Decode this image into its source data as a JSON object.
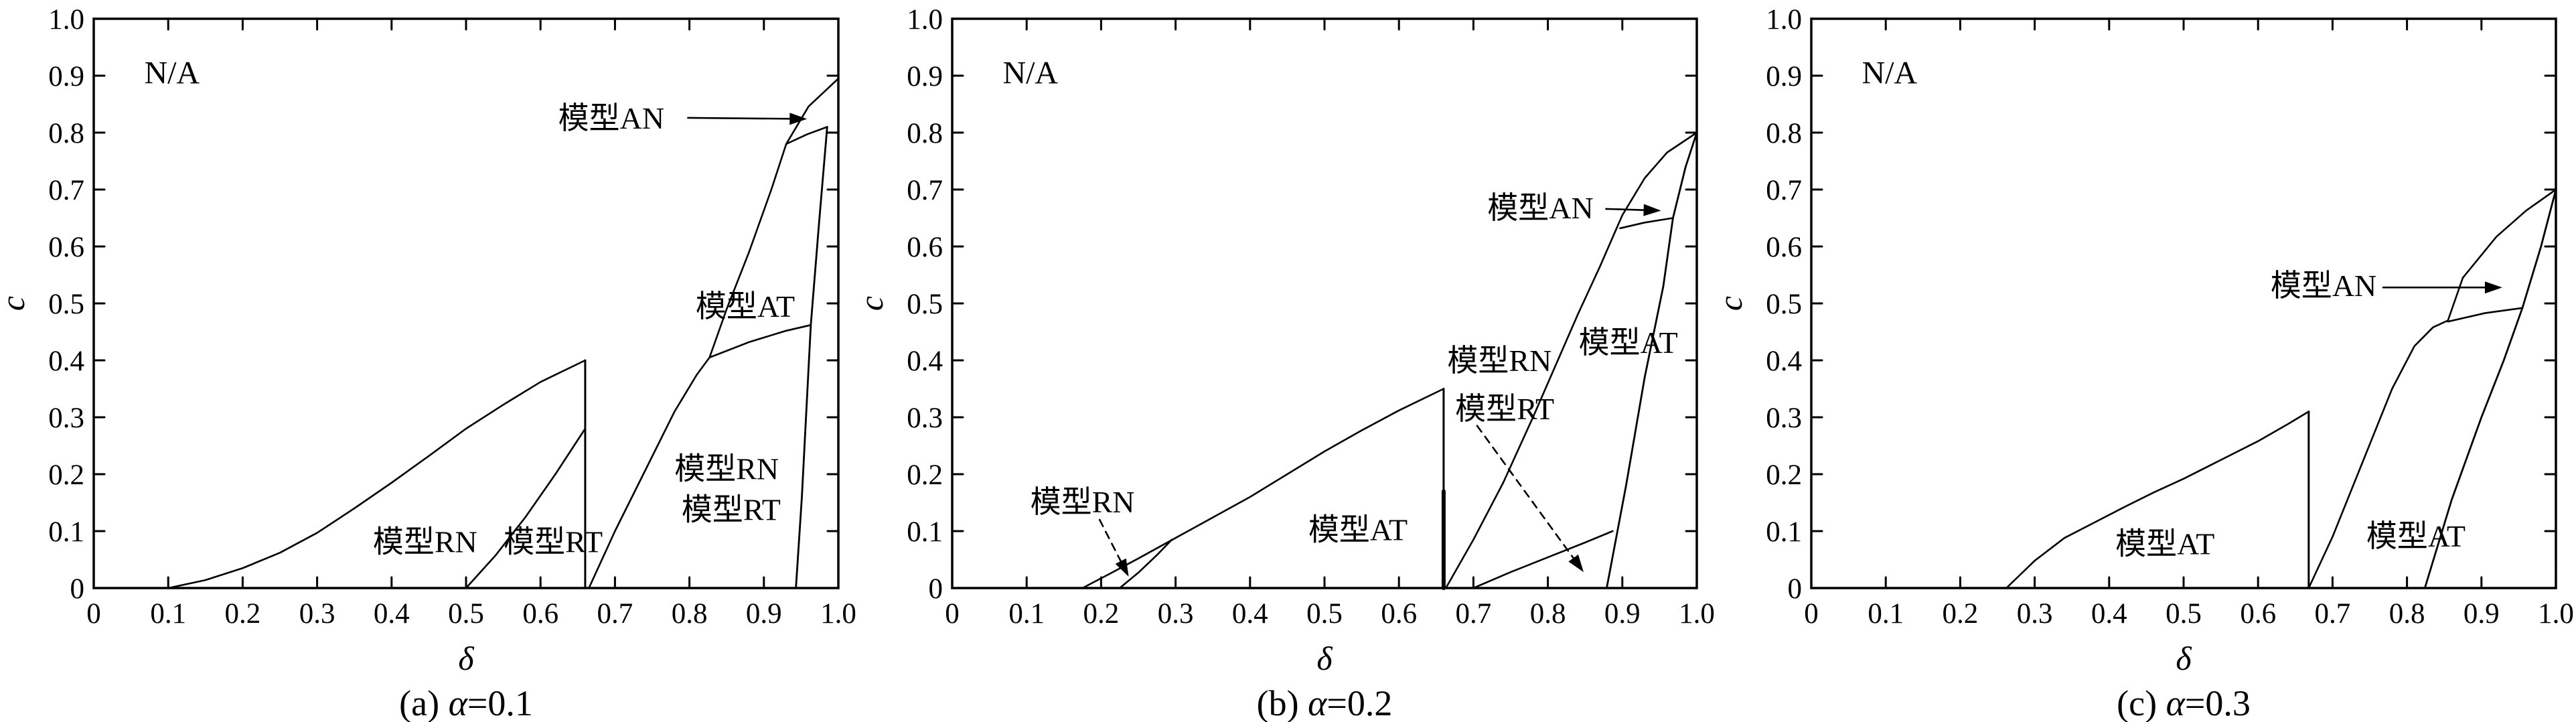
{
  "page": {
    "background": "#ffffff",
    "line_color": "#000000"
  },
  "chart_data": {
    "type": "line",
    "title": "",
    "xlabel": "δ",
    "ylabel": "c",
    "xlim": [
      0,
      1
    ],
    "ylim": [
      0,
      1
    ],
    "grid": false,
    "legend": "none",
    "tick_values": [
      0,
      0.1,
      0.2,
      0.3,
      0.4,
      0.5,
      0.6,
      0.7,
      0.8,
      0.9,
      1.0
    ],
    "tick_labels": [
      "0",
      "0.1",
      "0.2",
      "0.3",
      "0.4",
      "0.5",
      "0.6",
      "0.7",
      "0.8",
      "0.9",
      "1.0"
    ],
    "panels": [
      {
        "id": "a",
        "caption": {
          "prefix": "(a) ",
          "alpha": "α",
          "suffix": "=0.1"
        },
        "boundaries": [
          {
            "name": "na-boundary-left",
            "width": 2.6,
            "points": [
              [
                0.1,
                0
              ],
              [
                0.15,
                0.014
              ],
              [
                0.2,
                0.035
              ],
              [
                0.25,
                0.062
              ],
              [
                0.3,
                0.097
              ],
              [
                0.35,
                0.14
              ],
              [
                0.4,
                0.185
              ],
              [
                0.45,
                0.232
              ],
              [
                0.5,
                0.28
              ],
              [
                0.55,
                0.322
              ],
              [
                0.6,
                0.362
              ],
              [
                0.66,
                0.4
              ]
            ]
          },
          {
            "name": "vertical-drop",
            "width": 3,
            "points": [
              [
                0.66,
                0.4
              ],
              [
                0.66,
                0
              ]
            ]
          },
          {
            "name": "rn-rt-divider-left",
            "width": 2.6,
            "points": [
              [
                0.5,
                0
              ],
              [
                0.54,
                0.058
              ],
              [
                0.58,
                0.125
              ],
              [
                0.62,
                0.2
              ],
              [
                0.66,
                0.28
              ]
            ]
          },
          {
            "name": "na-boundary-right",
            "width": 2.6,
            "points": [
              [
                0.665,
                0
              ],
              [
                0.7,
                0.1
              ],
              [
                0.74,
                0.205
              ],
              [
                0.78,
                0.31
              ],
              [
                0.81,
                0.375
              ],
              [
                0.827,
                0.405
              ],
              [
                0.85,
                0.49
              ],
              [
                0.88,
                0.59
              ],
              [
                0.91,
                0.7
              ],
              [
                0.93,
                0.78
              ],
              [
                0.96,
                0.846
              ],
              [
                1.0,
                0.895
              ]
            ]
          },
          {
            "name": "at-rnrt-divider",
            "width": 2.6,
            "points": [
              [
                0.827,
                0.405
              ],
              [
                0.88,
                0.432
              ],
              [
                0.93,
                0.452
              ],
              [
                0.963,
                0.462
              ]
            ]
          },
          {
            "name": "rnrt-right-edge",
            "width": 2.8,
            "points": [
              [
                0.943,
                0
              ],
              [
                0.951,
                0.16
              ],
              [
                0.963,
                0.462
              ],
              [
                0.974,
                0.64
              ],
              [
                0.985,
                0.81
              ]
            ]
          },
          {
            "name": "an-at-divider",
            "width": 2.6,
            "points": [
              [
                0.93,
                0.78
              ],
              [
                0.958,
                0.797
              ],
              [
                0.985,
                0.81
              ]
            ]
          }
        ],
        "region_labels": [
          {
            "name": "na",
            "text": "N/A",
            "x": 0.105,
            "y": 0.905,
            "class": "na-label"
          },
          {
            "name": "model-rn-left",
            "text": "模型RN",
            "x": 0.445,
            "y": 0.082
          },
          {
            "name": "model-rt-left",
            "text": "模型RT",
            "x": 0.617,
            "y": 0.082
          },
          {
            "name": "model-rn-right",
            "text": "模型RN",
            "x": 0.85,
            "y": 0.21
          },
          {
            "name": "model-rt-right",
            "text": "模型RT",
            "x": 0.856,
            "y": 0.138
          },
          {
            "name": "model-at",
            "text": "模型AT",
            "x": 0.875,
            "y": 0.495
          }
        ],
        "annotations": [
          {
            "name": "model-an",
            "text": "模型AN",
            "label_x": 0.695,
            "label_y": 0.826,
            "arrow_from": [
              0.798,
              0.826
            ],
            "arrow_to": [
              0.958,
              0.824
            ],
            "dashed": false
          }
        ]
      },
      {
        "id": "b",
        "caption": {
          "prefix": "(b) ",
          "alpha": "α",
          "suffix": "=0.2"
        },
        "boundaries": [
          {
            "name": "na-boundary-left",
            "width": 2.6,
            "points": [
              [
                0.175,
                0
              ],
              [
                0.21,
                0.024
              ],
              [
                0.25,
                0.052
              ],
              [
                0.3,
                0.088
              ],
              [
                0.35,
                0.124
              ],
              [
                0.4,
                0.16
              ],
              [
                0.45,
                0.2
              ],
              [
                0.5,
                0.24
              ],
              [
                0.55,
                0.277
              ],
              [
                0.6,
                0.312
              ],
              [
                0.66,
                0.35
              ]
            ]
          },
          {
            "name": "vertical-drop",
            "width": 3,
            "points": [
              [
                0.66,
                0.35
              ],
              [
                0.66,
                0
              ]
            ]
          },
          {
            "name": "vertical-drop-thick",
            "width": 6,
            "points": [
              [
                0.66,
                0.17
              ],
              [
                0.66,
                0
              ]
            ]
          },
          {
            "name": "rn-wedge-edge",
            "width": 2.6,
            "points": [
              [
                0.225,
                0
              ],
              [
                0.25,
                0.027
              ],
              [
                0.275,
                0.058
              ],
              [
                0.295,
                0.085
              ]
            ]
          },
          {
            "name": "na-boundary-right",
            "width": 2.6,
            "points": [
              [
                0.663,
                0
              ],
              [
                0.7,
                0.085
              ],
              [
                0.74,
                0.185
              ],
              [
                0.78,
                0.3
              ],
              [
                0.81,
                0.39
              ],
              [
                0.84,
                0.48
              ],
              [
                0.87,
                0.565
              ],
              [
                0.9,
                0.655
              ],
              [
                0.93,
                0.72
              ],
              [
                0.96,
                0.765
              ],
              [
                1.0,
                0.8
              ]
            ]
          },
          {
            "name": "at-rnrt-divider",
            "width": 2.6,
            "points": [
              [
                0.7,
                0
              ],
              [
                0.75,
                0.028
              ],
              [
                0.8,
                0.054
              ],
              [
                0.85,
                0.08
              ],
              [
                0.887,
                0.1
              ]
            ]
          },
          {
            "name": "rnrt-right-edge",
            "width": 2.8,
            "points": [
              [
                0.879,
                0
              ],
              [
                0.905,
                0.18
              ],
              [
                0.93,
                0.37
              ],
              [
                0.955,
                0.53
              ],
              [
                0.968,
                0.65
              ],
              [
                0.985,
                0.74
              ],
              [
                1.0,
                0.8
              ]
            ]
          },
          {
            "name": "an-at-divider",
            "width": 2.6,
            "points": [
              [
                0.897,
                0.632
              ],
              [
                0.93,
                0.642
              ],
              [
                0.968,
                0.65
              ]
            ]
          }
        ],
        "region_labels": [
          {
            "name": "na",
            "text": "N/A",
            "x": 0.105,
            "y": 0.905,
            "class": "na-label"
          },
          {
            "name": "model-rn-left",
            "text": "模型RN",
            "x": 0.175,
            "y": 0.152
          },
          {
            "name": "model-at-left",
            "text": "模型AT",
            "x": 0.545,
            "y": 0.103
          },
          {
            "name": "model-rn-right",
            "text": "模型RN",
            "x": 0.735,
            "y": 0.4
          },
          {
            "name": "model-rt-right",
            "text": "模型RT",
            "x": 0.742,
            "y": 0.315
          },
          {
            "name": "model-at-right",
            "text": "模型AT",
            "x": 0.908,
            "y": 0.432
          }
        ],
        "annotations": [
          {
            "name": "model-an",
            "text": "模型AN",
            "label_x": 0.79,
            "label_y": 0.668,
            "arrow_from": [
              0.878,
              0.666
            ],
            "arrow_to": [
              0.952,
              0.663
            ],
            "dashed": false
          },
          {
            "name": "model-rn-left-arrow",
            "text": "",
            "label_x": null,
            "label_y": null,
            "arrow_from": [
              0.198,
              0.12
            ],
            "arrow_to": [
              0.237,
              0.02
            ],
            "dashed": true
          },
          {
            "name": "model-rnrt-right-arrow",
            "text": "",
            "label_x": null,
            "label_y": null,
            "arrow_from": [
              0.705,
              0.285
            ],
            "arrow_to": [
              0.848,
              0.028
            ],
            "dashed": true
          }
        ]
      },
      {
        "id": "c",
        "caption": {
          "prefix": "(c) ",
          "alpha": "α",
          "suffix": "=0.3"
        },
        "boundaries": [
          {
            "name": "na-boundary-left",
            "width": 2.6,
            "points": [
              [
                0.262,
                0
              ],
              [
                0.3,
                0.048
              ],
              [
                0.34,
                0.088
              ],
              [
                0.38,
                0.115
              ],
              [
                0.42,
                0.142
              ],
              [
                0.46,
                0.168
              ],
              [
                0.5,
                0.192
              ],
              [
                0.55,
                0.225
              ],
              [
                0.6,
                0.258
              ],
              [
                0.64,
                0.288
              ],
              [
                0.668,
                0.31
              ]
            ]
          },
          {
            "name": "vertical-drop",
            "width": 3,
            "points": [
              [
                0.668,
                0.31
              ],
              [
                0.668,
                0
              ]
            ]
          },
          {
            "name": "na-boundary-right",
            "width": 2.6,
            "points": [
              [
                0.668,
                0
              ],
              [
                0.7,
                0.09
              ],
              [
                0.74,
                0.22
              ],
              [
                0.78,
                0.35
              ],
              [
                0.81,
                0.425
              ],
              [
                0.835,
                0.458
              ],
              [
                0.855,
                0.47
              ],
              [
                0.875,
                0.545
              ],
              [
                0.92,
                0.617
              ],
              [
                0.96,
                0.663
              ],
              [
                1.0,
                0.7
              ]
            ]
          },
          {
            "name": "at-right-edge",
            "width": 2.8,
            "points": [
              [
                0.824,
                0
              ],
              [
                0.86,
                0.155
              ],
              [
                0.9,
                0.3
              ],
              [
                0.93,
                0.4
              ],
              [
                0.955,
                0.492
              ],
              [
                0.98,
                0.6
              ],
              [
                1.0,
                0.7
              ]
            ]
          },
          {
            "name": "an-at-divider",
            "width": 2.6,
            "points": [
              [
                0.855,
                0.468
              ],
              [
                0.905,
                0.483
              ],
              [
                0.955,
                0.492
              ]
            ]
          }
        ],
        "region_labels": [
          {
            "name": "na",
            "text": "N/A",
            "x": 0.105,
            "y": 0.905,
            "class": "na-label"
          },
          {
            "name": "model-at-left",
            "text": "模型AT",
            "x": 0.475,
            "y": 0.078
          },
          {
            "name": "model-at-right",
            "text": "模型AT",
            "x": 0.812,
            "y": 0.092
          }
        ],
        "annotations": [
          {
            "name": "model-an",
            "text": "模型AN",
            "label_x": 0.688,
            "label_y": 0.532,
            "arrow_from": [
              0.768,
              0.528
            ],
            "arrow_to": [
              0.928,
              0.528
            ],
            "dashed": false
          }
        ]
      }
    ]
  }
}
